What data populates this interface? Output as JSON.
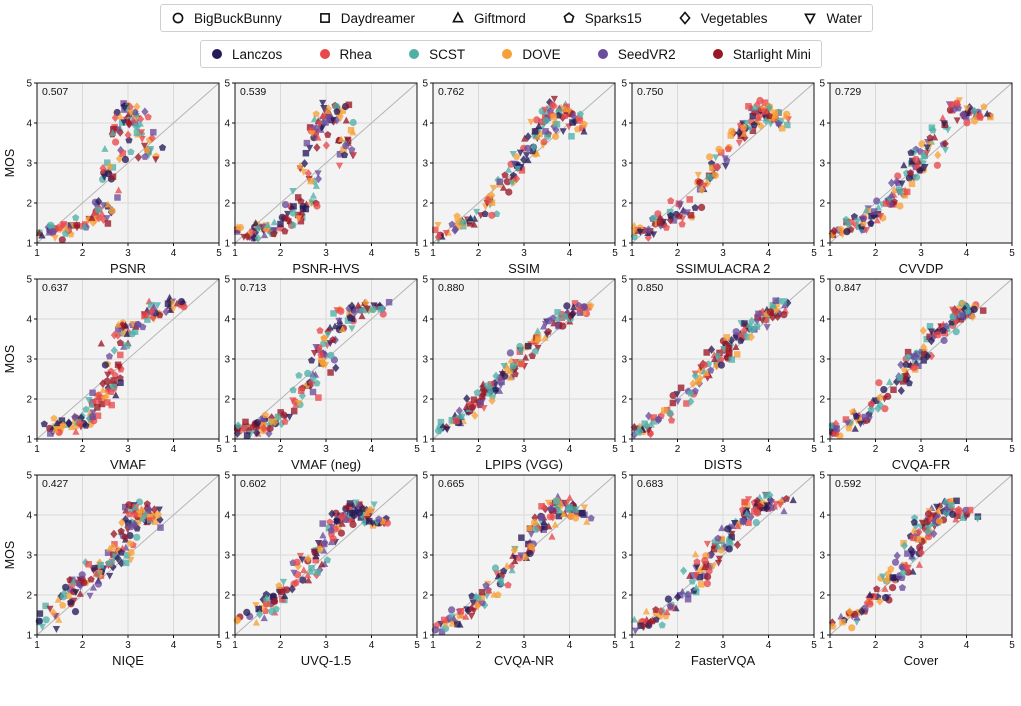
{
  "colors": {
    "Lanczos": "#241a57",
    "Rhea": "#e8484a",
    "SCST": "#4fb0a8",
    "DOVE": "#f7a035",
    "SeedVR2": "#6a4c9c",
    "Starlight Mini": "#991726"
  },
  "legend_content": [
    {
      "label": "BigBuckBunny",
      "icon": "circle-outline-icon"
    },
    {
      "label": "Daydreamer",
      "icon": "square-outline-icon"
    },
    {
      "label": "Giftmord",
      "icon": "triangle-outline-icon"
    },
    {
      "label": "Sparks15",
      "icon": "pentagon-outline-icon"
    },
    {
      "label": "Vegetables",
      "icon": "diamond-outline-icon"
    },
    {
      "label": "Water",
      "icon": "triangle-down-outline-icon"
    }
  ],
  "legend_methods": [
    "Lanczos",
    "Rhea",
    "SCST",
    "DOVE",
    "SeedVR2",
    "Starlight Mini"
  ],
  "chart_data": {
    "type": "scatter",
    "xlim": [
      1,
      5
    ],
    "ylim": [
      1,
      5
    ],
    "xticks": [
      1,
      2,
      3,
      4,
      5
    ],
    "yticks": [
      1,
      2,
      3,
      4,
      5
    ],
    "ylabel": "MOS",
    "grid": true,
    "reference_line": "y = x",
    "panels": [
      {
        "metric": "PSNR",
        "corr": "0.507",
        "shape": [
          [
            1.1,
            1.2
          ],
          [
            2.0,
            1.4
          ],
          [
            2.6,
            2.0
          ],
          [
            2.8,
            3.8
          ],
          [
            3.1,
            4.4
          ],
          [
            3.5,
            3.0
          ]
        ],
        "scale": 0.55
      },
      {
        "metric": "PSNR-HVS",
        "corr": "0.539",
        "shape": [
          [
            1.1,
            1.2
          ],
          [
            2.0,
            1.4
          ],
          [
            2.6,
            2.0
          ],
          [
            2.8,
            3.8
          ],
          [
            3.2,
            4.4
          ],
          [
            3.6,
            3.0
          ]
        ],
        "scale": 0.55
      },
      {
        "metric": "SSIM",
        "corr": "0.762",
        "shape": [
          [
            1.1,
            1.2
          ],
          [
            1.9,
            1.6
          ],
          [
            2.7,
            2.6
          ],
          [
            3.3,
            3.6
          ],
          [
            3.8,
            4.5
          ],
          [
            4.2,
            3.8
          ]
        ],
        "scale": 0.45
      },
      {
        "metric": "SSIMULACRA 2",
        "corr": "0.750",
        "shape": [
          [
            1.1,
            1.2
          ],
          [
            1.9,
            1.6
          ],
          [
            2.7,
            2.6
          ],
          [
            3.3,
            3.6
          ],
          [
            3.8,
            4.5
          ],
          [
            4.3,
            4.0
          ]
        ],
        "scale": 0.5
      },
      {
        "metric": "CVVDP",
        "corr": "0.729",
        "shape": [
          [
            1.1,
            1.2
          ],
          [
            1.9,
            1.6
          ],
          [
            2.7,
            2.5
          ],
          [
            3.2,
            3.4
          ],
          [
            3.8,
            4.4
          ],
          [
            4.3,
            4.2
          ]
        ],
        "scale": 0.5
      },
      {
        "metric": "VMAF",
        "corr": "0.637",
        "shape": [
          [
            1.1,
            1.2
          ],
          [
            2.0,
            1.4
          ],
          [
            2.6,
            2.2
          ],
          [
            2.8,
            3.6
          ],
          [
            3.5,
            4.2
          ],
          [
            4.2,
            4.4
          ]
        ],
        "scale": 0.5
      },
      {
        "metric": "VMAF (neg)",
        "corr": "0.713",
        "shape": [
          [
            1.1,
            1.2
          ],
          [
            2.0,
            1.5
          ],
          [
            2.7,
            2.3
          ],
          [
            3.0,
            3.5
          ],
          [
            3.6,
            4.2
          ],
          [
            4.3,
            4.3
          ]
        ],
        "scale": 0.5
      },
      {
        "metric": "LPIPS (VGG)",
        "corr": "0.880",
        "shape": [
          [
            1.1,
            1.2
          ],
          [
            1.8,
            1.7
          ],
          [
            2.6,
            2.6
          ],
          [
            3.2,
            3.4
          ],
          [
            3.8,
            4.0
          ],
          [
            4.4,
            4.4
          ]
        ],
        "scale": 0.4
      },
      {
        "metric": "DISTS",
        "corr": "0.850",
        "shape": [
          [
            1.1,
            1.2
          ],
          [
            1.8,
            1.7
          ],
          [
            2.6,
            2.6
          ],
          [
            3.2,
            3.4
          ],
          [
            3.8,
            4.0
          ],
          [
            4.4,
            4.4
          ]
        ],
        "scale": 0.42
      },
      {
        "metric": "CVQA-FR",
        "corr": "0.847",
        "shape": [
          [
            1.1,
            1.2
          ],
          [
            1.8,
            1.6
          ],
          [
            2.6,
            2.6
          ],
          [
            3.1,
            3.4
          ],
          [
            3.7,
            4.0
          ],
          [
            4.1,
            4.3
          ]
        ],
        "scale": 0.42
      },
      {
        "metric": "NIQE",
        "corr": "0.427",
        "shape": [
          [
            1.2,
            1.3
          ],
          [
            2.0,
            2.4
          ],
          [
            2.7,
            2.8
          ],
          [
            3.0,
            3.4
          ],
          [
            3.2,
            4.2
          ],
          [
            3.6,
            3.8
          ]
        ],
        "scale": 0.6
      },
      {
        "metric": "UVQ-1.5",
        "corr": "0.602",
        "shape": [
          [
            1.2,
            1.3
          ],
          [
            2.0,
            2.0
          ],
          [
            2.7,
            2.8
          ],
          [
            3.1,
            3.6
          ],
          [
            3.6,
            4.2
          ],
          [
            4.2,
            3.8
          ]
        ],
        "scale": 0.55
      },
      {
        "metric": "CVQA-NR",
        "corr": "0.665",
        "shape": [
          [
            1.2,
            1.2
          ],
          [
            2.0,
            1.8
          ],
          [
            2.8,
            2.8
          ],
          [
            3.3,
            3.7
          ],
          [
            3.8,
            4.3
          ],
          [
            4.4,
            4.0
          ]
        ],
        "scale": 0.5
      },
      {
        "metric": "FasterVQA",
        "corr": "0.683",
        "shape": [
          [
            1.1,
            1.2
          ],
          [
            2.0,
            1.8
          ],
          [
            2.7,
            2.8
          ],
          [
            3.2,
            3.7
          ],
          [
            3.7,
            4.2
          ],
          [
            4.3,
            4.4
          ]
        ],
        "scale": 0.5
      },
      {
        "metric": "Cover",
        "corr": "0.592",
        "shape": [
          [
            1.2,
            1.3
          ],
          [
            2.1,
            2.0
          ],
          [
            2.7,
            2.9
          ],
          [
            3.1,
            3.7
          ],
          [
            3.5,
            4.2
          ],
          [
            4.2,
            4.0
          ]
        ],
        "scale": 0.5
      }
    ]
  }
}
